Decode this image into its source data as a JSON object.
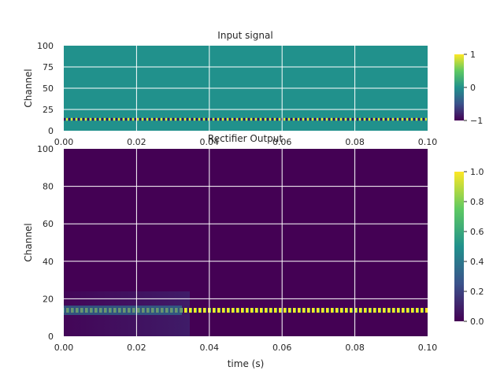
{
  "chart_data": [
    {
      "type": "heatmap",
      "title": "Input signal",
      "xlabel": "",
      "ylabel": "Channel",
      "xlim": [
        0,
        0.1
      ],
      "ylim": [
        0,
        100
      ],
      "xticks": [
        "0.00",
        "0.02",
        "0.04",
        "0.06",
        "0.08",
        "0.10"
      ],
      "yticks": [
        "0",
        "25",
        "50",
        "75",
        "100"
      ],
      "colormap": "viridis",
      "colorbar": {
        "min": -1,
        "max": 1,
        "ticks": [
          "1",
          "0",
          "−1"
        ]
      },
      "background_value": 0,
      "band": {
        "channel_min": 13,
        "channel_max": 15,
        "peak_value": 1
      },
      "grid": true
    },
    {
      "type": "heatmap",
      "title": "Rectifier Output",
      "xlabel": "time (s)",
      "ylabel": "Channel",
      "xlim": [
        0,
        0.1
      ],
      "ylim": [
        0,
        100
      ],
      "xticks": [
        "0.00",
        "0.02",
        "0.04",
        "0.06",
        "0.08",
        "0.10"
      ],
      "yticks": [
        "0",
        "20",
        "40",
        "60",
        "80",
        "100"
      ],
      "colormap": "viridis",
      "colorbar": {
        "min": 0,
        "max": 1,
        "ticks": [
          "1.0",
          "0.8",
          "0.6",
          "0.4",
          "0.2",
          "0.0"
        ]
      },
      "background_value": 0,
      "band": {
        "channel_min": 12,
        "channel_max": 15,
        "peak_value": 1
      },
      "grid": true
    }
  ],
  "colors": {
    "viridis_low": "#440154",
    "viridis_mid": "#21918c",
    "viridis_high": "#fde725",
    "grid": "#ffffff"
  }
}
